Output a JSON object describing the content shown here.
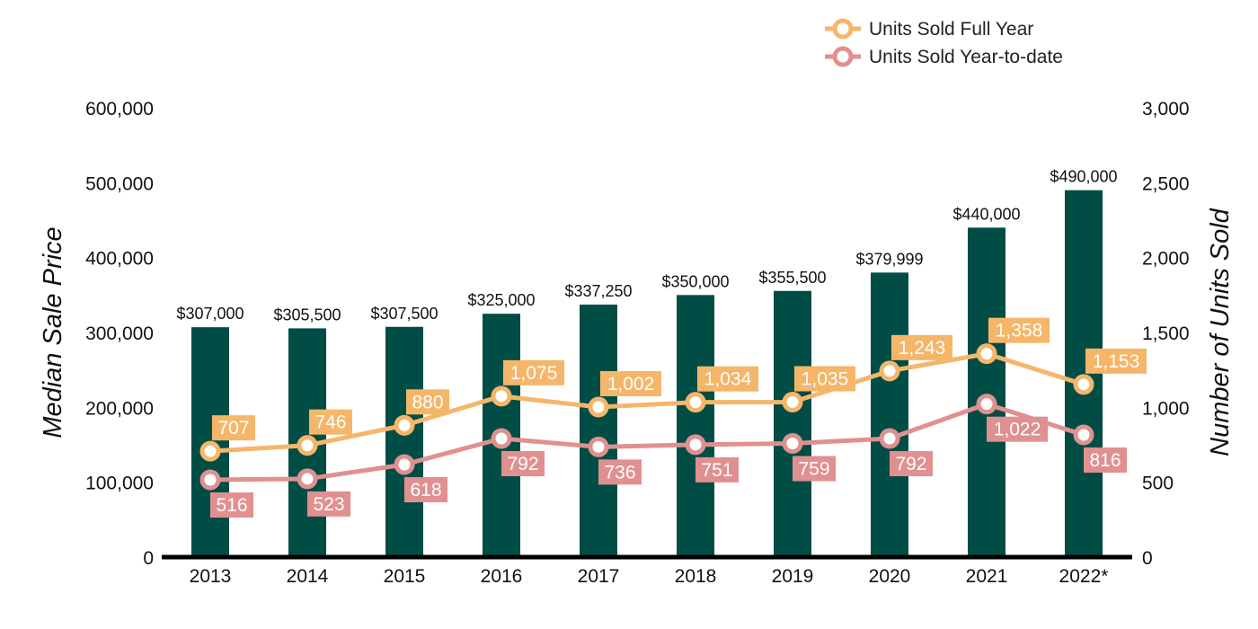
{
  "chart_data": {
    "type": "bar",
    "categories": [
      "2013",
      "2014",
      "2015",
      "2016",
      "2017",
      "2018",
      "2019",
      "2020",
      "2021",
      "2022*"
    ],
    "bars": {
      "values": [
        307000,
        305500,
        307500,
        325000,
        337250,
        350000,
        355500,
        379999,
        440000,
        490000
      ],
      "labels": [
        "$307,000",
        "$305,500",
        "$307,500",
        "$325,000",
        "$337,250",
        "$350,000",
        "$355,500",
        "$379,999",
        "$440,000",
        "$490,000"
      ],
      "color": "#004d45"
    },
    "series": [
      {
        "name": "Units Sold Full Year",
        "type": "line",
        "axis": "right",
        "color": "#f5b66a",
        "values": [
          707,
          746,
          880,
          1075,
          1002,
          1034,
          1035,
          1243,
          1358,
          1153
        ],
        "labels": [
          "707",
          "746",
          "880",
          "1,075",
          "1,002",
          "1,034",
          "1,035",
          "1,243",
          "1,358",
          "1,153"
        ]
      },
      {
        "name": "Units Sold Year-to-date",
        "type": "line",
        "axis": "right",
        "color": "#e09090",
        "values": [
          516,
          523,
          618,
          792,
          736,
          751,
          759,
          792,
          1022,
          816
        ],
        "labels": [
          "516",
          "523",
          "618",
          "792",
          "736",
          "751",
          "759",
          "792",
          "1,022",
          "816"
        ]
      }
    ],
    "ylabel": "Median Sale Price",
    "y2label": "Number of Units Sold",
    "ylim": [
      0,
      600000
    ],
    "y2lim": [
      0,
      3000
    ],
    "yticks": [
      0,
      100000,
      200000,
      300000,
      400000,
      500000,
      600000
    ],
    "yticklabels": [
      "0",
      "100,000",
      "200,000",
      "300,000",
      "400,000",
      "500,000",
      "600,000"
    ],
    "y2ticks": [
      0,
      500,
      1000,
      1500,
      2000,
      2500,
      3000
    ],
    "y2ticklabels": [
      "0",
      "500",
      "1,000",
      "1,500",
      "2,000",
      "2,500",
      "3,000"
    ],
    "grid": false,
    "legend": "top-right"
  }
}
